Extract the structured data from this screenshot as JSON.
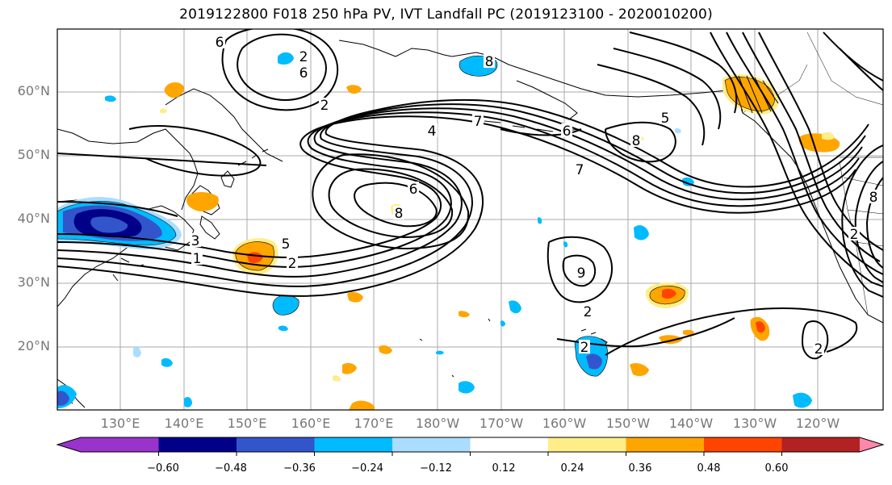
{
  "title": "2019122800 F018 250 hPa PV, IVT Landfall PC (2019123100 - 2020010200)",
  "lat_labels": [
    "60°N",
    "50°N",
    "40°N",
    "30°N",
    "20°N"
  ],
  "lon_labels": [
    "130°E",
    "140°E",
    "150°E",
    "160°E",
    "170°E",
    "180°W",
    "170°W",
    "160°W",
    "150°W",
    "140°W",
    "130°W",
    "120°W"
  ],
  "colorbar": {
    "ticks": [
      "−0.60",
      "−0.48",
      "−0.36",
      "−0.24",
      "−0.12",
      "0.12",
      "0.24",
      "0.36",
      "0.48",
      "0.60"
    ],
    "colors": [
      "#9933cc",
      "#000088",
      "#3355cc",
      "#00bbff",
      "#aaddff",
      "#ffffff",
      "#ffee88",
      "#ffa500",
      "#ff4400",
      "#b22222",
      "#ff88aa"
    ]
  },
  "contour_labels": [
    "6",
    "6",
    "7",
    "4",
    "6",
    "8",
    "6",
    "7",
    "5",
    "3",
    "2",
    "1",
    "2",
    "5",
    "8",
    "8",
    "8",
    "9",
    "2",
    "2",
    "2",
    "2",
    "2"
  ],
  "colors": {
    "fill_negative": "#00bbff",
    "fill_positive": "#ffa500",
    "contour": "#000000",
    "grid": "#aaaaaa"
  }
}
